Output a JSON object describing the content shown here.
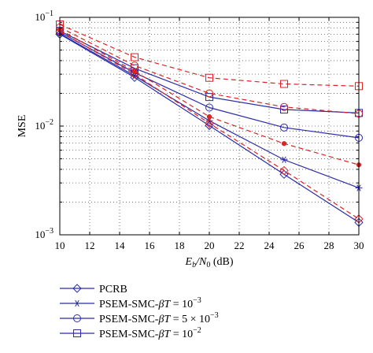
{
  "chart_data": {
    "type": "line",
    "title": "",
    "xlabel": "E_b/N_0 (dB)",
    "ylabel": "MSE",
    "x_scale": "linear",
    "y_scale": "log",
    "xlim": [
      10,
      30
    ],
    "ylim": [
      0.001,
      0.1
    ],
    "x_ticks": [
      10,
      12,
      14,
      16,
      18,
      20,
      22,
      24,
      26,
      28,
      30
    ],
    "x_tick_labels": [
      "10",
      "12",
      "14",
      "16",
      "18",
      "20",
      "22",
      "24",
      "26",
      "28",
      "30"
    ],
    "y_tick_labels": [
      "10^-3",
      "10^-2",
      "10^-1"
    ],
    "grid": "dotted",
    "legend_position": "below",
    "legend": [
      {
        "label": "PCRB",
        "marker": "diamond"
      },
      {
        "label": "PSEM-SMC-βT = 10^-3",
        "marker": "star"
      },
      {
        "label": "PSEM-SMC-βT = 5 × 10^-3",
        "marker": "circle"
      },
      {
        "label": "PSEM-SMC-βT = 10^-2",
        "marker": "square"
      }
    ],
    "series": [
      {
        "name": "PCRB",
        "color": "#2b2ba8",
        "linestyle": "solid",
        "marker": "diamond",
        "x": [
          10,
          15,
          20,
          25,
          30
        ],
        "y": [
          0.07,
          0.028,
          0.0101,
          0.0036,
          0.0013
        ]
      },
      {
        "name": "PSEM-SMC-βT = 10^-3",
        "color": "#2b2ba8",
        "linestyle": "solid",
        "marker": "star",
        "x": [
          10,
          15,
          20,
          25,
          30
        ],
        "y": [
          0.071,
          0.029,
          0.0112,
          0.0049,
          0.0027
        ]
      },
      {
        "name": "PSEM-SMC-βT = 5 × 10^-3",
        "color": "#2b2ba8",
        "linestyle": "solid",
        "marker": "circle",
        "x": [
          10,
          15,
          20,
          25,
          30
        ],
        "y": [
          0.073,
          0.031,
          0.0148,
          0.0097,
          0.0078
        ]
      },
      {
        "name": "PSEM-SMC-βT = 10^-2",
        "color": "#2b2ba8",
        "linestyle": "solid",
        "marker": "square",
        "x": [
          10,
          15,
          20,
          25,
          30
        ],
        "y": [
          0.075,
          0.034,
          0.0185,
          0.0142,
          0.0132
        ]
      },
      {
        "color": "#dd2222",
        "linestyle": "dashed",
        "marker": "diamond",
        "x": [
          10,
          15,
          20,
          25,
          30
        ],
        "y": [
          0.074,
          0.03,
          0.0106,
          0.0039,
          0.0014
        ]
      },
      {
        "color": "#dd2222",
        "linestyle": "dashed",
        "marker": "star",
        "x": [
          10,
          15,
          20,
          25,
          30
        ],
        "y": [
          0.077,
          0.032,
          0.0122,
          0.0069,
          0.0044
        ]
      },
      {
        "color": "#dd2222",
        "linestyle": "dashed",
        "marker": "circle",
        "x": [
          10,
          15,
          20,
          25,
          30
        ],
        "y": [
          0.081,
          0.036,
          0.02,
          0.015,
          0.013
        ]
      },
      {
        "color": "#dd2222",
        "linestyle": "dashed",
        "marker": "square",
        "x": [
          10,
          15,
          20,
          25,
          30
        ],
        "y": [
          0.086,
          0.043,
          0.0278,
          0.0244,
          0.0233
        ]
      }
    ]
  }
}
